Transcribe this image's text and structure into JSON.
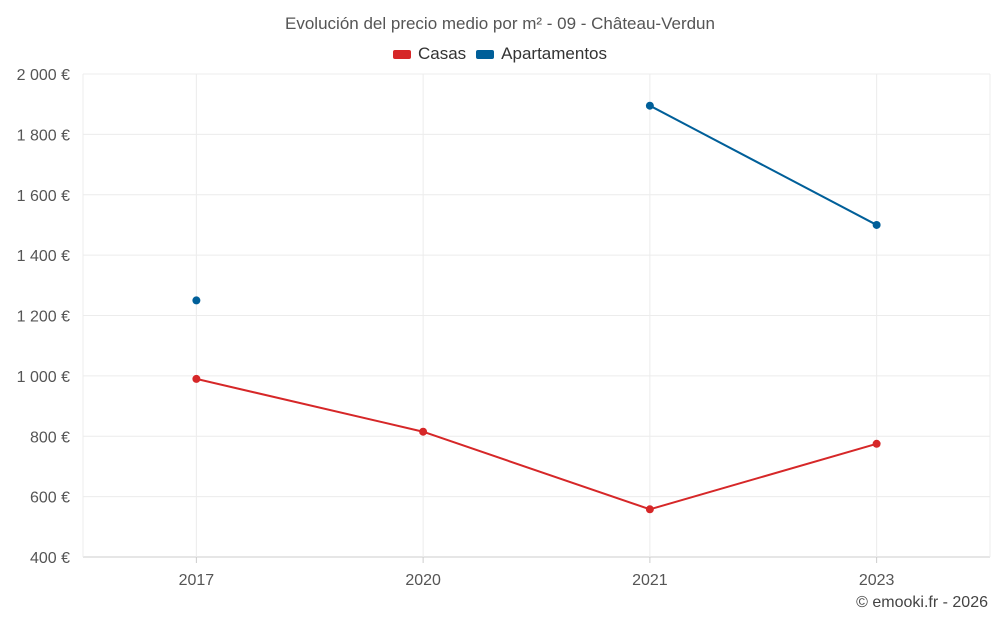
{
  "chart_data": {
    "type": "line",
    "title": "Evolución del precio medio por m² - 09 - Château-Verdun",
    "categories": [
      "2017",
      "2020",
      "2021",
      "2023"
    ],
    "series": [
      {
        "name": "Casas",
        "color": "#d62728",
        "values": [
          990,
          815,
          558,
          775
        ]
      },
      {
        "name": "Apartamentos",
        "color": "#005f99",
        "values": [
          1250,
          null,
          1895,
          1500
        ]
      }
    ],
    "ylim": [
      400,
      2000
    ],
    "yticks": [
      400,
      600,
      800,
      1000,
      1200,
      1400,
      1600,
      1800,
      2000
    ],
    "ytick_labels": [
      "400 €",
      "600 €",
      "800 €",
      "1 000 €",
      "1 200 €",
      "1 400 €",
      "1 600 €",
      "1 800 €",
      "2 000 €"
    ],
    "grid": true,
    "legend_position": "top-center",
    "xlabel": "",
    "ylabel": ""
  },
  "credit": "© emooki.fr - 2026"
}
